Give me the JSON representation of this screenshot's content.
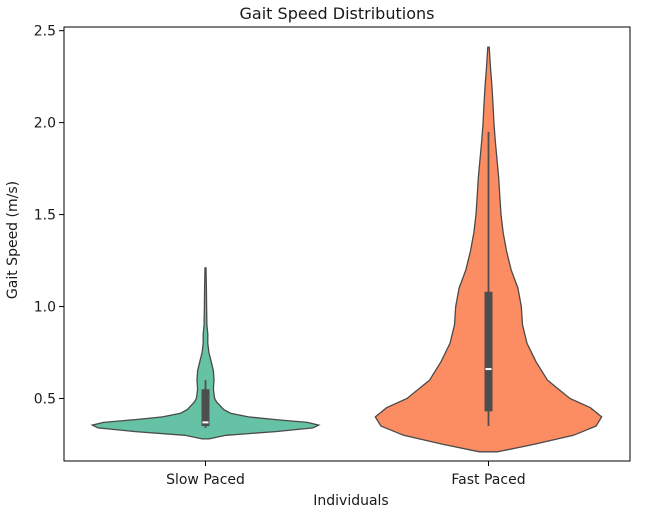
{
  "chart_data": {
    "type": "violin",
    "title": "Gait Speed Distributions",
    "xlabel": "Individuals",
    "ylabel": "Gait Speed (m/s)",
    "ylim": [
      0.16,
      2.52
    ],
    "yticks": [
      0.5,
      1.0,
      1.5,
      2.0,
      2.5
    ],
    "ytick_labels": [
      "0.5",
      "1.0",
      "1.5",
      "2.0",
      "2.5"
    ],
    "categories": [
      "Slow Paced",
      "Fast Paced"
    ],
    "grid": false,
    "legend": false,
    "series": [
      {
        "category": "Slow Paced",
        "color": "#66c2a5",
        "box": {
          "whisker_low": 0.34,
          "q1": 0.35,
          "median": 0.37,
          "q3": 0.55,
          "whisker_high": 0.6
        },
        "density": [
          [
            0.28,
            0.03
          ],
          [
            0.3,
            0.18
          ],
          [
            0.32,
            0.62
          ],
          [
            0.34,
            0.95
          ],
          [
            0.355,
            1.0
          ],
          [
            0.37,
            0.9
          ],
          [
            0.385,
            0.62
          ],
          [
            0.4,
            0.38
          ],
          [
            0.42,
            0.22
          ],
          [
            0.44,
            0.16
          ],
          [
            0.46,
            0.13
          ],
          [
            0.48,
            0.1
          ],
          [
            0.5,
            0.08
          ],
          [
            0.55,
            0.07
          ],
          [
            0.6,
            0.075
          ],
          [
            0.65,
            0.07
          ],
          [
            0.7,
            0.05
          ],
          [
            0.75,
            0.03
          ],
          [
            0.8,
            0.02
          ],
          [
            0.85,
            0.02
          ],
          [
            0.9,
            0.012
          ],
          [
            1.0,
            0.01
          ],
          [
            1.1,
            0.008
          ],
          [
            1.21,
            0.004
          ]
        ]
      },
      {
        "category": "Fast Paced",
        "color": "#fc8d62",
        "box": {
          "whisker_low": 0.35,
          "q1": 0.43,
          "median": 0.66,
          "q3": 1.08,
          "whisker_high": 1.95
        },
        "density": [
          [
            0.21,
            0.08
          ],
          [
            0.25,
            0.4
          ],
          [
            0.3,
            0.75
          ],
          [
            0.35,
            0.95
          ],
          [
            0.4,
            1.0
          ],
          [
            0.45,
            0.9
          ],
          [
            0.5,
            0.72
          ],
          [
            0.6,
            0.52
          ],
          [
            0.7,
            0.42
          ],
          [
            0.8,
            0.34
          ],
          [
            0.9,
            0.3
          ],
          [
            1.0,
            0.29
          ],
          [
            1.1,
            0.26
          ],
          [
            1.2,
            0.2
          ],
          [
            1.3,
            0.16
          ],
          [
            1.4,
            0.13
          ],
          [
            1.5,
            0.11
          ],
          [
            1.6,
            0.1
          ],
          [
            1.7,
            0.09
          ],
          [
            1.8,
            0.075
          ],
          [
            1.9,
            0.06
          ],
          [
            2.0,
            0.048
          ],
          [
            2.1,
            0.04
          ],
          [
            2.2,
            0.03
          ],
          [
            2.3,
            0.018
          ],
          [
            2.41,
            0.006
          ]
        ]
      }
    ]
  }
}
